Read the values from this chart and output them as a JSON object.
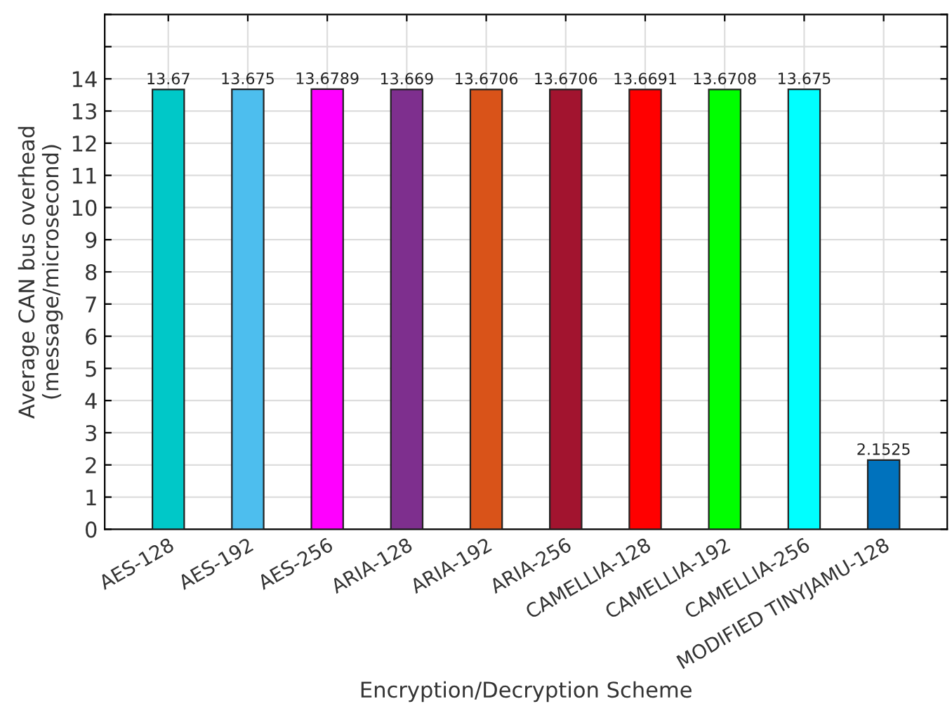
{
  "chart_data": {
    "type": "bar",
    "xlabel": "Encryption/Decryption Scheme",
    "ylabel": "Average CAN bus overhead\n(message/microsecond)",
    "categories": [
      "AES-128",
      "AES-192",
      "AES-256",
      "ARIA-128",
      "ARIA-192",
      "ARIA-256",
      "CAMELLIA-128",
      "CAMELLIA-192",
      "CAMELLIA-256",
      "MODIFIED TINYJAMU-128"
    ],
    "values": [
      13.67,
      13.675,
      13.6789,
      13.669,
      13.6706,
      13.6706,
      13.6691,
      13.6708,
      13.675,
      2.1525
    ],
    "colors": [
      "#00c8c8",
      "#4dbeee",
      "#ff00ff",
      "#7e2f8e",
      "#d95319",
      "#a2142f",
      "#ff0000",
      "#00ff00",
      "#00ffff",
      "#0072bd"
    ],
    "ylim": [
      0,
      16
    ],
    "yticks": [
      0,
      1,
      2,
      3,
      4,
      5,
      6,
      7,
      8,
      9,
      10,
      11,
      12,
      13,
      14,
      {
        "value": 15,
        "label": null
      },
      {
        "value": 16,
        "label": null
      }
    ],
    "grid": true,
    "data_labels": true
  }
}
